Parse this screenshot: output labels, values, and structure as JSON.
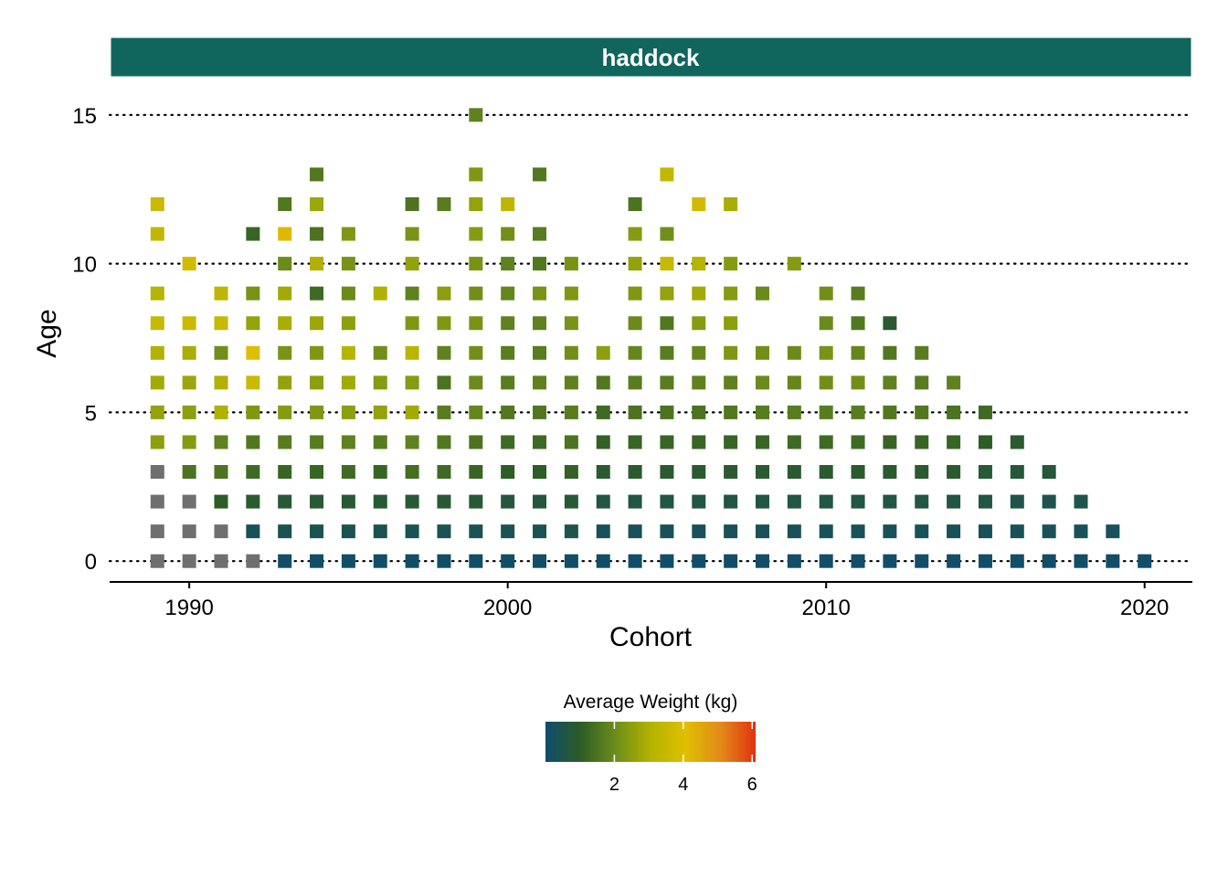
{
  "chart_data": {
    "type": "heatmap",
    "facet": "haddock",
    "xlabel": "Cohort",
    "ylabel": "Age",
    "xlim": [
      1987.5,
      2021.5
    ],
    "ylim": [
      -0.7,
      16.1
    ],
    "x_ticks": [
      1990,
      2000,
      2010,
      2020
    ],
    "y_ticks": [
      0,
      5,
      10,
      15
    ],
    "grid": "horizontal dotted lines at y ticks",
    "legend": {
      "title": "Average Weight (kg)",
      "placement": "bottom",
      "range": [
        0,
        6.1
      ],
      "ticks": [
        2,
        4,
        6
      ],
      "colors": [
        "#0f4c6e",
        "#2d5c26",
        "#6c8d1a",
        "#b3b300",
        "#e0bf00",
        "#e28a1a",
        "#e0330d"
      ],
      "na_color": "#6f6f6f"
    },
    "points": [
      [
        1989,
        0,
        null
      ],
      [
        1989,
        1,
        null
      ],
      [
        1989,
        2,
        null
      ],
      [
        1989,
        3,
        null
      ],
      [
        1989,
        4,
        2.5
      ],
      [
        1989,
        5,
        2.6
      ],
      [
        1989,
        6,
        2.8
      ],
      [
        1989,
        7,
        3.0
      ],
      [
        1989,
        8,
        3.5
      ],
      [
        1989,
        9,
        3.1
      ],
      [
        1989,
        11,
        3.4
      ],
      [
        1989,
        12,
        3.6
      ],
      [
        1990,
        0,
        null
      ],
      [
        1990,
        1,
        null
      ],
      [
        1990,
        2,
        null
      ],
      [
        1990,
        3,
        1.5
      ],
      [
        1990,
        4,
        2.4
      ],
      [
        1990,
        5,
        2.5
      ],
      [
        1990,
        6,
        2.7
      ],
      [
        1990,
        7,
        2.9
      ],
      [
        1990,
        8,
        3.6
      ],
      [
        1990,
        10,
        3.7
      ],
      [
        1991,
        0,
        null
      ],
      [
        1991,
        1,
        null
      ],
      [
        1991,
        2,
        1.0
      ],
      [
        1991,
        3,
        1.5
      ],
      [
        1991,
        4,
        1.8
      ],
      [
        1991,
        5,
        3.0
      ],
      [
        1991,
        6,
        3.0
      ],
      [
        1991,
        7,
        2.1
      ],
      [
        1991,
        8,
        3.5
      ],
      [
        1991,
        9,
        3.3
      ],
      [
        1992,
        0,
        null
      ],
      [
        1992,
        1,
        0.3
      ],
      [
        1992,
        2,
        0.9
      ],
      [
        1992,
        3,
        1.3
      ],
      [
        1992,
        4,
        1.6
      ],
      [
        1992,
        5,
        2.3
      ],
      [
        1992,
        6,
        3.6
      ],
      [
        1992,
        7,
        4.0
      ],
      [
        1992,
        8,
        2.6
      ],
      [
        1992,
        9,
        2.2
      ],
      [
        1992,
        11,
        1.2
      ],
      [
        1993,
        0,
        0.1
      ],
      [
        1993,
        1,
        0.4
      ],
      [
        1993,
        2,
        0.8
      ],
      [
        1993,
        3,
        1.2
      ],
      [
        1993,
        4,
        1.7
      ],
      [
        1993,
        5,
        2.4
      ],
      [
        1993,
        6,
        2.6
      ],
      [
        1993,
        7,
        2.2
      ],
      [
        1993,
        8,
        2.9
      ],
      [
        1993,
        9,
        2.8
      ],
      [
        1993,
        10,
        2.0
      ],
      [
        1993,
        11,
        4.2
      ],
      [
        1993,
        12,
        1.6
      ],
      [
        1994,
        0,
        0.1
      ],
      [
        1994,
        1,
        0.4
      ],
      [
        1994,
        2,
        0.8
      ],
      [
        1994,
        3,
        1.2
      ],
      [
        1994,
        4,
        1.7
      ],
      [
        1994,
        5,
        2.3
      ],
      [
        1994,
        6,
        2.5
      ],
      [
        1994,
        7,
        2.3
      ],
      [
        1994,
        8,
        2.7
      ],
      [
        1994,
        9,
        1.3
      ],
      [
        1994,
        10,
        3.0
      ],
      [
        1994,
        11,
        1.5
      ],
      [
        1994,
        12,
        2.7
      ],
      [
        1994,
        13,
        1.6
      ],
      [
        1995,
        0,
        0.1
      ],
      [
        1995,
        1,
        0.4
      ],
      [
        1995,
        2,
        0.8
      ],
      [
        1995,
        3,
        1.3
      ],
      [
        1995,
        4,
        1.8
      ],
      [
        1995,
        5,
        2.5
      ],
      [
        1995,
        6,
        2.8
      ],
      [
        1995,
        7,
        3.1
      ],
      [
        1995,
        8,
        2.5
      ],
      [
        1995,
        9,
        2.0
      ],
      [
        1995,
        10,
        2.2
      ],
      [
        1995,
        11,
        2.3
      ],
      [
        1996,
        0,
        0.1
      ],
      [
        1996,
        1,
        0.4
      ],
      [
        1996,
        2,
        0.8
      ],
      [
        1996,
        3,
        1.2
      ],
      [
        1996,
        4,
        1.7
      ],
      [
        1996,
        5,
        2.6
      ],
      [
        1996,
        6,
        2.4
      ],
      [
        1996,
        7,
        2.1
      ],
      [
        1996,
        9,
        3.0
      ],
      [
        1997,
        0,
        0.1
      ],
      [
        1997,
        1,
        0.4
      ],
      [
        1997,
        2,
        0.8
      ],
      [
        1997,
        3,
        1.4
      ],
      [
        1997,
        4,
        1.8
      ],
      [
        1997,
        5,
        2.8
      ],
      [
        1997,
        6,
        2.4
      ],
      [
        1997,
        7,
        3.2
      ],
      [
        1997,
        8,
        2.3
      ],
      [
        1997,
        9,
        1.8
      ],
      [
        1997,
        10,
        2.6
      ],
      [
        1997,
        11,
        2.2
      ],
      [
        1997,
        12,
        1.5
      ],
      [
        1998,
        0,
        0.1
      ],
      [
        1998,
        1,
        0.4
      ],
      [
        1998,
        2,
        0.8
      ],
      [
        1998,
        3,
        1.3
      ],
      [
        1998,
        4,
        1.6
      ],
      [
        1998,
        5,
        1.7
      ],
      [
        1998,
        6,
        1.5
      ],
      [
        1998,
        7,
        1.8
      ],
      [
        1998,
        8,
        2.3
      ],
      [
        1998,
        9,
        2.5
      ],
      [
        1998,
        12,
        1.7
      ],
      [
        1999,
        0,
        0.1
      ],
      [
        1999,
        1,
        0.4
      ],
      [
        1999,
        2,
        0.8
      ],
      [
        1999,
        3,
        1.2
      ],
      [
        1999,
        4,
        1.5
      ],
      [
        1999,
        5,
        1.9
      ],
      [
        1999,
        6,
        2.0
      ],
      [
        1999,
        7,
        2.1
      ],
      [
        1999,
        8,
        2.2
      ],
      [
        1999,
        9,
        2.1
      ],
      [
        1999,
        10,
        2.2
      ],
      [
        1999,
        11,
        2.4
      ],
      [
        1999,
        12,
        2.6
      ],
      [
        1999,
        13,
        2.3
      ],
      [
        1999,
        15,
        1.8
      ],
      [
        2000,
        0,
        0.1
      ],
      [
        2000,
        1,
        0.4
      ],
      [
        2000,
        2,
        0.7
      ],
      [
        2000,
        3,
        1.0
      ],
      [
        2000,
        4,
        1.3
      ],
      [
        2000,
        5,
        1.6
      ],
      [
        2000,
        6,
        1.7
      ],
      [
        2000,
        7,
        1.7
      ],
      [
        2000,
        8,
        1.8
      ],
      [
        2000,
        9,
        1.9
      ],
      [
        2000,
        10,
        1.8
      ],
      [
        2000,
        11,
        2.1
      ],
      [
        2000,
        12,
        3.3
      ],
      [
        2001,
        0,
        0.1
      ],
      [
        2001,
        1,
        0.4
      ],
      [
        2001,
        2,
        0.7
      ],
      [
        2001,
        3,
        1.0
      ],
      [
        2001,
        4,
        1.3
      ],
      [
        2001,
        5,
        1.6
      ],
      [
        2001,
        6,
        1.8
      ],
      [
        2001,
        7,
        1.7
      ],
      [
        2001,
        8,
        1.8
      ],
      [
        2001,
        9,
        2.2
      ],
      [
        2001,
        10,
        1.6
      ],
      [
        2001,
        11,
        1.7
      ],
      [
        2001,
        13,
        1.6
      ],
      [
        2002,
        0,
        0.1
      ],
      [
        2002,
        1,
        0.5
      ],
      [
        2002,
        2,
        0.8
      ],
      [
        2002,
        3,
        1.1
      ],
      [
        2002,
        4,
        1.5
      ],
      [
        2002,
        5,
        1.7
      ],
      [
        2002,
        6,
        1.8
      ],
      [
        2002,
        7,
        2.1
      ],
      [
        2002,
        8,
        2.2
      ],
      [
        2002,
        9,
        2.3
      ],
      [
        2002,
        10,
        2.2
      ],
      [
        2003,
        0,
        0.1
      ],
      [
        2003,
        1,
        0.3
      ],
      [
        2003,
        2,
        0.6
      ],
      [
        2003,
        3,
        0.9
      ],
      [
        2003,
        4,
        1.1
      ],
      [
        2003,
        5,
        1.3
      ],
      [
        2003,
        6,
        1.6
      ],
      [
        2003,
        7,
        2.5
      ],
      [
        2004,
        0,
        0.1
      ],
      [
        2004,
        1,
        0.3
      ],
      [
        2004,
        2,
        0.6
      ],
      [
        2004,
        3,
        0.9
      ],
      [
        2004,
        4,
        1.2
      ],
      [
        2004,
        5,
        1.5
      ],
      [
        2004,
        6,
        1.7
      ],
      [
        2004,
        7,
        1.9
      ],
      [
        2004,
        8,
        2.0
      ],
      [
        2004,
        9,
        2.3
      ],
      [
        2004,
        10,
        2.6
      ],
      [
        2004,
        11,
        2.4
      ],
      [
        2004,
        12,
        1.5
      ],
      [
        2005,
        0,
        0.1
      ],
      [
        2005,
        1,
        0.3
      ],
      [
        2005,
        2,
        0.6
      ],
      [
        2005,
        3,
        0.9
      ],
      [
        2005,
        4,
        1.2
      ],
      [
        2005,
        5,
        1.5
      ],
      [
        2005,
        6,
        1.7
      ],
      [
        2005,
        7,
        1.7
      ],
      [
        2005,
        8,
        1.6
      ],
      [
        2005,
        9,
        2.6
      ],
      [
        2005,
        10,
        3.5
      ],
      [
        2005,
        11,
        2.1
      ],
      [
        2005,
        13,
        3.4
      ],
      [
        2006,
        0,
        0.1
      ],
      [
        2006,
        1,
        0.3
      ],
      [
        2006,
        2,
        0.6
      ],
      [
        2006,
        3,
        0.9
      ],
      [
        2006,
        4,
        1.2
      ],
      [
        2006,
        5,
        1.5
      ],
      [
        2006,
        6,
        1.8
      ],
      [
        2006,
        7,
        1.9
      ],
      [
        2006,
        8,
        2.4
      ],
      [
        2006,
        9,
        2.8
      ],
      [
        2006,
        10,
        3.1
      ],
      [
        2006,
        12,
        3.7
      ],
      [
        2007,
        0,
        0.1
      ],
      [
        2007,
        1,
        0.3
      ],
      [
        2007,
        2,
        0.6
      ],
      [
        2007,
        3,
        0.9
      ],
      [
        2007,
        4,
        1.2
      ],
      [
        2007,
        5,
        1.6
      ],
      [
        2007,
        6,
        1.8
      ],
      [
        2007,
        7,
        2.3
      ],
      [
        2007,
        8,
        2.5
      ],
      [
        2007,
        9,
        2.4
      ],
      [
        2007,
        10,
        2.4
      ],
      [
        2007,
        12,
        2.9
      ],
      [
        2008,
        0,
        0.1
      ],
      [
        2008,
        1,
        0.3
      ],
      [
        2008,
        2,
        0.6
      ],
      [
        2008,
        3,
        0.9
      ],
      [
        2008,
        4,
        1.2
      ],
      [
        2008,
        5,
        1.7
      ],
      [
        2008,
        6,
        2.0
      ],
      [
        2008,
        7,
        2.1
      ],
      [
        2008,
        9,
        2.0
      ],
      [
        2009,
        0,
        0.1
      ],
      [
        2009,
        1,
        0.3
      ],
      [
        2009,
        2,
        0.6
      ],
      [
        2009,
        3,
        0.9
      ],
      [
        2009,
        4,
        1.3
      ],
      [
        2009,
        5,
        1.7
      ],
      [
        2009,
        6,
        1.9
      ],
      [
        2009,
        7,
        2.0
      ],
      [
        2009,
        10,
        2.4
      ],
      [
        2010,
        0,
        0.1
      ],
      [
        2010,
        1,
        0.3
      ],
      [
        2010,
        2,
        0.6
      ],
      [
        2010,
        3,
        0.9
      ],
      [
        2010,
        4,
        1.3
      ],
      [
        2010,
        5,
        1.7
      ],
      [
        2010,
        6,
        2.1
      ],
      [
        2010,
        7,
        2.2
      ],
      [
        2010,
        8,
        2.0
      ],
      [
        2010,
        9,
        2.1
      ],
      [
        2011,
        0,
        0.1
      ],
      [
        2011,
        1,
        0.3
      ],
      [
        2011,
        2,
        0.6
      ],
      [
        2011,
        3,
        0.9
      ],
      [
        2011,
        4,
        1.3
      ],
      [
        2011,
        5,
        1.7
      ],
      [
        2011,
        6,
        2.1
      ],
      [
        2011,
        7,
        1.9
      ],
      [
        2011,
        8,
        1.6
      ],
      [
        2011,
        9,
        1.7
      ],
      [
        2012,
        0,
        0.1
      ],
      [
        2012,
        1,
        0.3
      ],
      [
        2012,
        2,
        0.6
      ],
      [
        2012,
        3,
        0.9
      ],
      [
        2012,
        4,
        1.2
      ],
      [
        2012,
        5,
        1.6
      ],
      [
        2012,
        6,
        1.8
      ],
      [
        2012,
        7,
        1.6
      ],
      [
        2012,
        8,
        0.9
      ],
      [
        2013,
        0,
        0.1
      ],
      [
        2013,
        1,
        0.3
      ],
      [
        2013,
        2,
        0.6
      ],
      [
        2013,
        3,
        0.9
      ],
      [
        2013,
        4,
        1.2
      ],
      [
        2013,
        5,
        1.6
      ],
      [
        2013,
        6,
        1.7
      ],
      [
        2013,
        7,
        1.7
      ],
      [
        2014,
        0,
        0.1
      ],
      [
        2014,
        1,
        0.3
      ],
      [
        2014,
        2,
        0.6
      ],
      [
        2014,
        3,
        0.9
      ],
      [
        2014,
        4,
        1.2
      ],
      [
        2014,
        5,
        1.5
      ],
      [
        2014,
        6,
        1.8
      ],
      [
        2015,
        0,
        0.1
      ],
      [
        2015,
        1,
        0.3
      ],
      [
        2015,
        2,
        0.6
      ],
      [
        2015,
        3,
        0.8
      ],
      [
        2015,
        4,
        1.0
      ],
      [
        2015,
        5,
        1.3
      ],
      [
        2016,
        0,
        0.1
      ],
      [
        2016,
        1,
        0.3
      ],
      [
        2016,
        2,
        0.5
      ],
      [
        2016,
        3,
        0.7
      ],
      [
        2016,
        4,
        0.9
      ],
      [
        2017,
        0,
        0.1
      ],
      [
        2017,
        1,
        0.3
      ],
      [
        2017,
        2,
        0.5
      ],
      [
        2017,
        3,
        0.7
      ],
      [
        2018,
        0,
        0.1
      ],
      [
        2018,
        1,
        0.3
      ],
      [
        2018,
        2,
        0.5
      ],
      [
        2019,
        0,
        0.1
      ],
      [
        2019,
        1,
        0.3
      ],
      [
        2020,
        0,
        0.1
      ]
    ]
  }
}
